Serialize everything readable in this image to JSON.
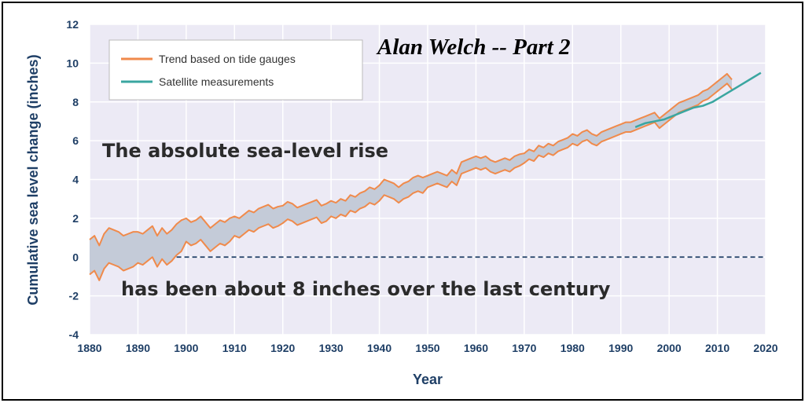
{
  "chart_data": {
    "type": "line",
    "xlabel": "Year",
    "ylabel": "Cumulative sea level change (inches)",
    "xlim": [
      1880,
      2020
    ],
    "ylim": [
      -4,
      12
    ],
    "x_ticks": [
      "1880",
      "1890",
      "1900",
      "1910",
      "1920",
      "1930",
      "1940",
      "1950",
      "1960",
      "1970",
      "1980",
      "1990",
      "2000",
      "2010",
      "2020"
    ],
    "y_ticks": [
      "-4",
      "-2",
      "0",
      "2",
      "4",
      "6",
      "8",
      "10",
      "12"
    ],
    "grid": true,
    "legend_position": "top-left",
    "series": [
      {
        "name": "Trend based on tide gauges",
        "color": "#f08a4b",
        "x": [
          1880,
          1881,
          1882,
          1883,
          1884,
          1885,
          1886,
          1887,
          1888,
          1889,
          1890,
          1891,
          1892,
          1893,
          1894,
          1895,
          1896,
          1897,
          1898,
          1899,
          1900,
          1901,
          1902,
          1903,
          1904,
          1905,
          1906,
          1907,
          1908,
          1909,
          1910,
          1911,
          1912,
          1913,
          1914,
          1915,
          1916,
          1917,
          1918,
          1919,
          1920,
          1921,
          1922,
          1923,
          1924,
          1925,
          1926,
          1927,
          1928,
          1929,
          1930,
          1931,
          1932,
          1933,
          1934,
          1935,
          1936,
          1937,
          1938,
          1939,
          1940,
          1941,
          1942,
          1943,
          1944,
          1945,
          1946,
          1947,
          1948,
          1949,
          1950,
          1951,
          1952,
          1953,
          1954,
          1955,
          1956,
          1957,
          1958,
          1959,
          1960,
          1961,
          1962,
          1963,
          1964,
          1965,
          1966,
          1967,
          1968,
          1969,
          1970,
          1971,
          1972,
          1973,
          1974,
          1975,
          1976,
          1977,
          1978,
          1979,
          1980,
          1981,
          1982,
          1983,
          1984,
          1985,
          1986,
          1987,
          1988,
          1989,
          1990,
          1991,
          1992,
          1993,
          1994,
          1995,
          1996,
          1997,
          1998,
          1999,
          2000,
          2001,
          2002,
          2003,
          2004,
          2005,
          2006,
          2007,
          2008,
          2009,
          2010,
          2011,
          2012,
          2013
        ],
        "values": [
          0.0,
          0.2,
          -0.3,
          0.3,
          0.6,
          0.5,
          0.4,
          0.2,
          0.3,
          0.4,
          0.5,
          0.4,
          0.6,
          0.8,
          0.3,
          0.7,
          0.4,
          0.6,
          0.9,
          1.1,
          1.4,
          1.2,
          1.3,
          1.5,
          1.2,
          0.9,
          1.1,
          1.3,
          1.2,
          1.4,
          1.6,
          1.5,
          1.7,
          1.9,
          1.8,
          2.0,
          2.1,
          2.2,
          2.0,
          2.1,
          2.2,
          2.4,
          2.3,
          2.1,
          2.2,
          2.3,
          2.4,
          2.5,
          2.2,
          2.3,
          2.5,
          2.4,
          2.6,
          2.5,
          2.8,
          2.7,
          2.9,
          3.0,
          3.2,
          3.1,
          3.3,
          3.6,
          3.5,
          3.4,
          3.2,
          3.4,
          3.5,
          3.7,
          3.8,
          3.7,
          3.9,
          4.0,
          4.1,
          4.0,
          3.9,
          4.2,
          4.0,
          4.6,
          4.7,
          4.8,
          4.9,
          4.8,
          4.9,
          4.7,
          4.6,
          4.7,
          4.8,
          4.7,
          4.9,
          5.0,
          5.1,
          5.3,
          5.2,
          5.5,
          5.4,
          5.6,
          5.5,
          5.7,
          5.8,
          5.9,
          6.1,
          6.0,
          6.2,
          6.3,
          6.1,
          6.0,
          6.2,
          6.3,
          6.4,
          6.5,
          6.6,
          6.7,
          6.7,
          6.8,
          6.9,
          7.0,
          7.1,
          7.2,
          6.9,
          7.1,
          7.3,
          7.5,
          7.7,
          7.8,
          7.9,
          8.0,
          8.1,
          8.3,
          8.4,
          8.6,
          8.8,
          9.0,
          9.2,
          8.9
        ],
        "uncertainty": [
          0.9,
          0.9,
          0.9,
          0.9,
          0.9,
          0.9,
          0.9,
          0.9,
          0.9,
          0.9,
          0.8,
          0.8,
          0.8,
          0.8,
          0.8,
          0.8,
          0.8,
          0.8,
          0.8,
          0.8,
          0.6,
          0.6,
          0.6,
          0.6,
          0.6,
          0.6,
          0.6,
          0.6,
          0.6,
          0.6,
          0.5,
          0.5,
          0.5,
          0.5,
          0.5,
          0.5,
          0.5,
          0.5,
          0.5,
          0.5,
          0.45,
          0.45,
          0.45,
          0.45,
          0.45,
          0.45,
          0.45,
          0.45,
          0.45,
          0.45,
          0.4,
          0.4,
          0.4,
          0.4,
          0.4,
          0.4,
          0.4,
          0.4,
          0.4,
          0.4,
          0.4,
          0.4,
          0.4,
          0.4,
          0.4,
          0.4,
          0.4,
          0.4,
          0.4,
          0.4,
          0.3,
          0.3,
          0.3,
          0.3,
          0.3,
          0.3,
          0.3,
          0.3,
          0.3,
          0.3,
          0.3,
          0.3,
          0.3,
          0.3,
          0.3,
          0.3,
          0.3,
          0.3,
          0.3,
          0.3,
          0.25,
          0.25,
          0.25,
          0.25,
          0.25,
          0.25,
          0.25,
          0.25,
          0.25,
          0.25,
          0.25,
          0.25,
          0.25,
          0.25,
          0.25,
          0.25,
          0.25,
          0.25,
          0.25,
          0.25,
          0.25,
          0.25,
          0.25,
          0.25,
          0.25,
          0.25,
          0.25,
          0.25,
          0.25,
          0.25,
          0.25,
          0.25,
          0.25,
          0.25,
          0.25,
          0.25,
          0.25,
          0.25,
          0.25,
          0.25,
          0.25,
          0.25,
          0.25,
          0.25
        ]
      },
      {
        "name": "Satellite measurements",
        "color": "#3aa6a0",
        "x": [
          1993,
          1995,
          1997,
          1999,
          2001,
          2003,
          2005,
          2007,
          2009,
          2011,
          2013,
          2015,
          2017,
          2019
        ],
        "values": [
          6.7,
          6.9,
          7.0,
          7.1,
          7.3,
          7.5,
          7.7,
          7.8,
          8.0,
          8.3,
          8.6,
          8.9,
          9.2,
          9.5
        ]
      }
    ],
    "band_color": "#c4cbd8",
    "plot_background": "#eceaf5",
    "zero_line_color": "#1f3f66"
  },
  "overlay": {
    "title": "Alan Welch  -- Part 2",
    "line1": "The absolute sea-level rise",
    "line2": "has been about 8 inches over the last century"
  }
}
